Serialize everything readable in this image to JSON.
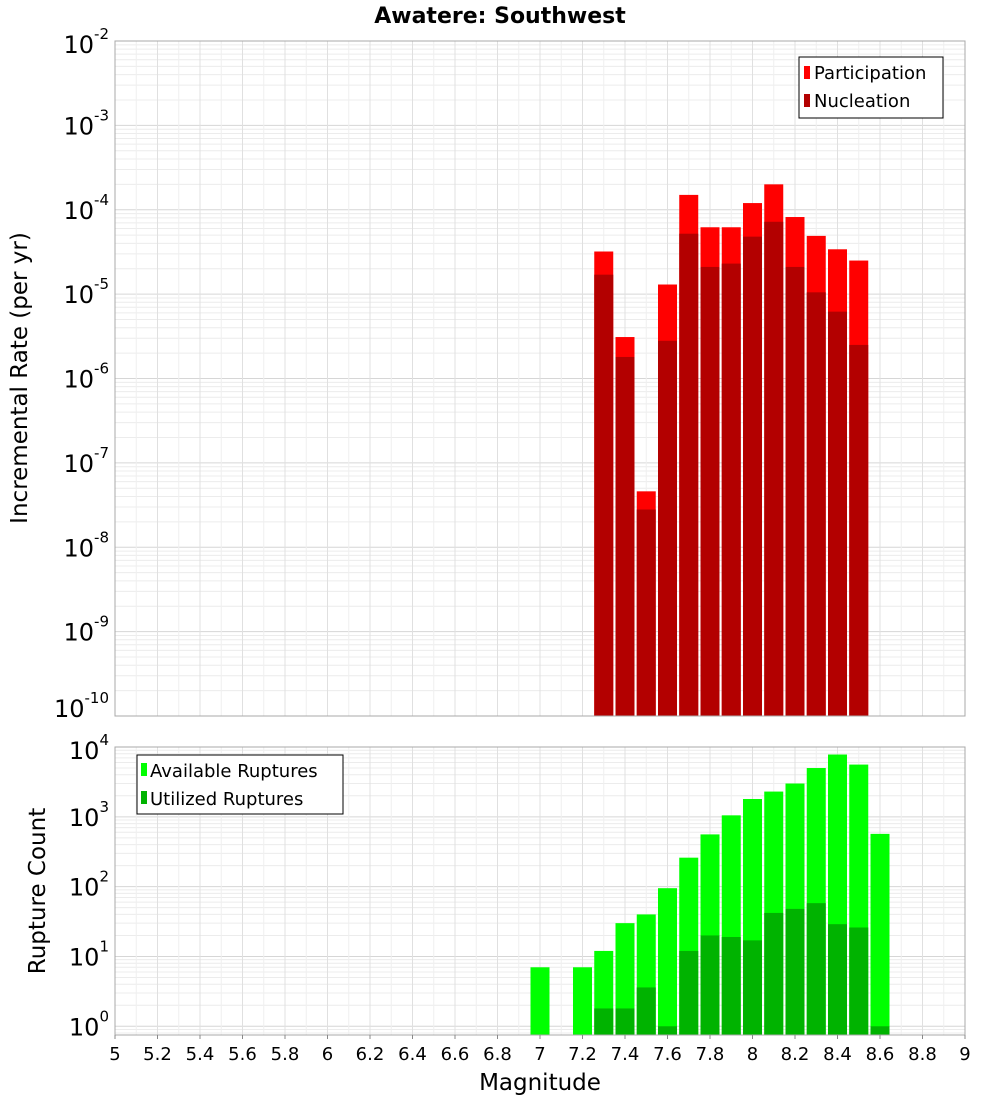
{
  "chart_data": [
    {
      "type": "bar",
      "title": "Awatere: Southwest",
      "xlabel": "",
      "ylabel": "Incremental Rate (per yr)",
      "yscale": "log",
      "ylim": [
        1e-10,
        0.01
      ],
      "xlim": [
        5,
        9
      ],
      "grid": true,
      "legend_position": "top-right",
      "series": [
        {
          "name": "Participation",
          "color": "#ff0000",
          "x": [
            7.3,
            7.4,
            7.5,
            7.6,
            7.7,
            7.8,
            7.9,
            8.0,
            8.1,
            8.2,
            8.3,
            8.4,
            8.5
          ],
          "values": [
            3.2e-05,
            3.1e-06,
            4.6e-08,
            1.3e-05,
            0.00015,
            6.2e-05,
            6.2e-05,
            0.00012,
            0.0002,
            8.2e-05,
            4.9e-05,
            3.4e-05,
            2.5e-05
          ]
        },
        {
          "name": "Nucleation",
          "color": "#b30000",
          "x": [
            7.3,
            7.4,
            7.5,
            7.6,
            7.7,
            7.8,
            7.9,
            8.0,
            8.1,
            8.2,
            8.3,
            8.4,
            8.5
          ],
          "values": [
            1.7e-05,
            1.8e-06,
            2.8e-08,
            2.8e-06,
            5.2e-05,
            2.1e-05,
            2.3e-05,
            4.8e-05,
            7.2e-05,
            2.1e-05,
            1.05e-05,
            6.2e-06,
            2.5e-06
          ]
        }
      ]
    },
    {
      "type": "bar",
      "title": "",
      "xlabel": "Magnitude",
      "ylabel": "Rupture Count",
      "yscale": "log",
      "ylim": [
        0.75,
        10000
      ],
      "xlim": [
        5,
        9
      ],
      "x_ticks": [
        "5",
        "5.2",
        "5.4",
        "5.6",
        "5.8",
        "6",
        "6.2",
        "6.4",
        "6.6",
        "6.8",
        "7",
        "7.2",
        "7.4",
        "7.6",
        "7.8",
        "8",
        "8.2",
        "8.4",
        "8.6",
        "8.8",
        "9"
      ],
      "grid": true,
      "legend_position": "top-left",
      "series": [
        {
          "name": "Available Ruptures",
          "color": "#00ff00",
          "x": [
            7.0,
            7.2,
            7.3,
            7.4,
            7.5,
            7.6,
            7.7,
            7.8,
            7.9,
            8.0,
            8.1,
            8.2,
            8.3,
            8.4,
            8.5,
            8.6
          ],
          "values": [
            7,
            7,
            12,
            30,
            40,
            95,
            260,
            560,
            1050,
            1800,
            2300,
            3000,
            5000,
            7800,
            5600,
            570
          ]
        },
        {
          "name": "Utilized Ruptures",
          "color": "#00b300",
          "x": [
            7.3,
            7.4,
            7.5,
            7.6,
            7.7,
            7.8,
            7.9,
            8.0,
            8.1,
            8.2,
            8.3,
            8.4,
            8.5,
            8.6
          ],
          "values": [
            1.8,
            1.8,
            3.6,
            1,
            12,
            20,
            19,
            17,
            42,
            48,
            58,
            29,
            26,
            1
          ]
        }
      ]
    }
  ]
}
